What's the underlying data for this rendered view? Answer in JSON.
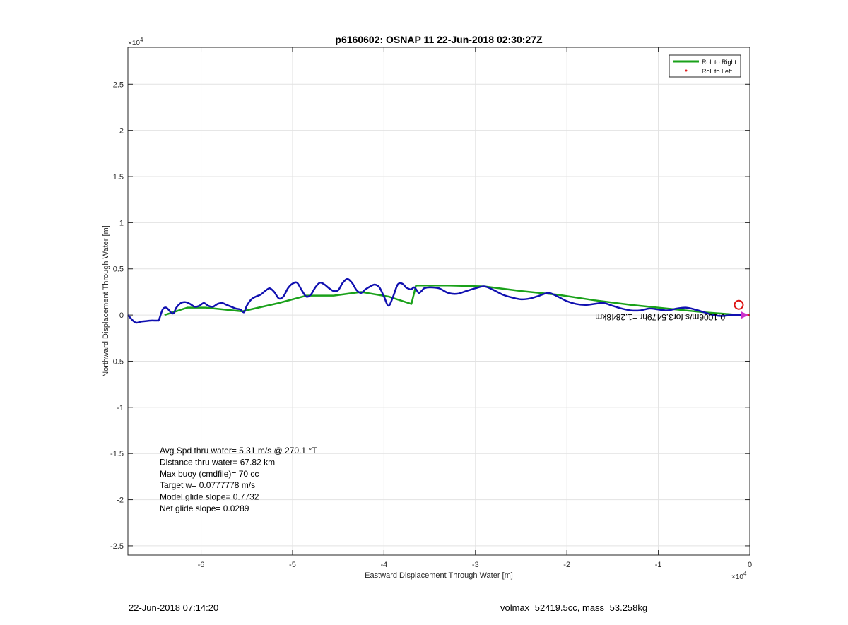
{
  "chart_data": {
    "type": "line",
    "title": "p6160602: OSNAP 11 22-Jun-2018 02:30:27Z",
    "xlabel": "Eastward Displacement Through Water [m]",
    "ylabel": "Northward Displacement Through Water [m]",
    "x_exponent": "×10^4",
    "y_exponent": "×10^4",
    "xlim": [
      -6.8,
      0
    ],
    "ylim": [
      -2.6,
      2.9
    ],
    "x_ticks": [
      -6,
      -5,
      -4,
      -3,
      -2,
      -1,
      0
    ],
    "x_tick_labels": [
      "-6",
      "-5",
      "-4",
      "-3",
      "-2",
      "-1",
      "0"
    ],
    "y_ticks": [
      -2.5,
      -2,
      -1.5,
      -1,
      -0.5,
      0,
      0.5,
      1,
      1.5,
      2,
      2.5
    ],
    "y_tick_labels": [
      "-2.5",
      "-2",
      "-1.5",
      "-1",
      "-0.5",
      "0",
      "0.5",
      "1",
      "1.5",
      "2",
      "2.5"
    ],
    "grid": true,
    "legend_position": "top-right",
    "colors": {
      "roll_right": "#1aa11a",
      "roll_left": "#e02020",
      "track": "#1010b0",
      "marker": "#dd1111",
      "grid": "#e2e2e2"
    },
    "series": [
      {
        "name": "Roll to Right",
        "x": [
          -6.4,
          -6.15,
          -5.95,
          -5.75,
          -5.55,
          -5.15,
          -4.85,
          -4.55,
          -4.25,
          -3.95,
          -3.7,
          -3.65,
          -3.3,
          -2.9,
          -2.5,
          -2.1,
          -1.7,
          -1.3,
          -0.9,
          -0.5,
          -0.1
        ],
        "y": [
          0.0,
          0.08,
          0.08,
          0.06,
          0.04,
          0.13,
          0.21,
          0.21,
          0.25,
          0.2,
          0.12,
          0.32,
          0.32,
          0.31,
          0.26,
          0.22,
          0.16,
          0.11,
          0.07,
          0.03,
          0.0
        ]
      },
      {
        "name": "Roll to Left",
        "x": [
          -0.02
        ],
        "y": [
          0.0
        ]
      },
      {
        "name": "",
        "x": [
          -6.8,
          -6.72,
          -6.65,
          -6.55,
          -6.48,
          -6.46,
          -6.42,
          -6.38,
          -6.33,
          -6.3,
          -6.27,
          -6.22,
          -6.17,
          -6.12,
          -6.07,
          -6.02,
          -5.97,
          -5.92,
          -5.87,
          -5.82,
          -5.77,
          -5.72,
          -5.67,
          -5.62,
          -5.57,
          -5.53,
          -5.5,
          -5.45,
          -5.4,
          -5.35,
          -5.3,
          -5.25,
          -5.2,
          -5.15,
          -5.1,
          -5.05,
          -5.0,
          -4.95,
          -4.9,
          -4.85,
          -4.8,
          -4.75,
          -4.7,
          -4.65,
          -4.6,
          -4.55,
          -4.5,
          -4.45,
          -4.4,
          -4.35,
          -4.3,
          -4.25,
          -4.2,
          -4.15,
          -4.1,
          -4.05,
          -4.0,
          -3.95,
          -3.9,
          -3.85,
          -3.8,
          -3.76,
          -3.74,
          -3.72,
          -3.7,
          -3.67,
          -3.65,
          -3.62,
          -3.6,
          -3.58,
          -3.56,
          -3.5,
          -3.4,
          -3.3,
          -3.2,
          -3.1,
          -3.0,
          -2.9,
          -2.8,
          -2.7,
          -2.6,
          -2.5,
          -2.4,
          -2.3,
          -2.2,
          -2.1,
          -2.0,
          -1.9,
          -1.8,
          -1.7,
          -1.6,
          -1.5,
          -1.4,
          -1.3,
          -1.2,
          -1.1,
          -1.0,
          -0.9,
          -0.8,
          -0.7,
          -0.6,
          -0.5,
          -0.4,
          -0.3,
          -0.2,
          -0.1,
          -0.02
        ],
        "y": [
          0.0,
          -0.08,
          -0.07,
          -0.06,
          -0.06,
          -0.05,
          0.06,
          0.08,
          0.03,
          0.02,
          0.08,
          0.13,
          0.14,
          0.12,
          0.09,
          0.1,
          0.13,
          0.1,
          0.09,
          0.12,
          0.13,
          0.11,
          0.09,
          0.07,
          0.06,
          0.03,
          0.1,
          0.17,
          0.2,
          0.22,
          0.26,
          0.29,
          0.25,
          0.18,
          0.2,
          0.29,
          0.34,
          0.35,
          0.27,
          0.2,
          0.22,
          0.3,
          0.35,
          0.33,
          0.29,
          0.26,
          0.27,
          0.35,
          0.39,
          0.35,
          0.27,
          0.24,
          0.28,
          0.31,
          0.33,
          0.3,
          0.2,
          0.1,
          0.2,
          0.33,
          0.34,
          0.3,
          0.29,
          0.28,
          0.28,
          0.3,
          0.28,
          0.24,
          0.25,
          0.27,
          0.29,
          0.3,
          0.29,
          0.24,
          0.23,
          0.26,
          0.29,
          0.31,
          0.27,
          0.22,
          0.19,
          0.17,
          0.18,
          0.21,
          0.24,
          0.2,
          0.15,
          0.12,
          0.11,
          0.12,
          0.13,
          0.1,
          0.07,
          0.05,
          0.05,
          0.07,
          0.06,
          0.05,
          0.07,
          0.08,
          0.06,
          0.03,
          0.0,
          -0.01,
          0.0,
          0.0,
          0.0
        ]
      }
    ],
    "start_marker": {
      "x": -0.12,
      "y": 0.11
    },
    "annotations": [
      "Avg Spd thru water=  5.31 m/s @ 270.1 °T",
      "Distance thru water= 67.82 km",
      "Max buoy (cmdfile)= 70 cc",
      "Target w= 0.0777778 m/s",
      "Model glide slope= 0.7732",
      "Net glide slope= 0.0289"
    ],
    "current_label": "0.1006m/s for3.5479hr =1.2848km"
  },
  "footer": {
    "left": "22-Jun-2018 07:14:20",
    "right": "volmax=52419.5cc, mass=53.258kg"
  }
}
